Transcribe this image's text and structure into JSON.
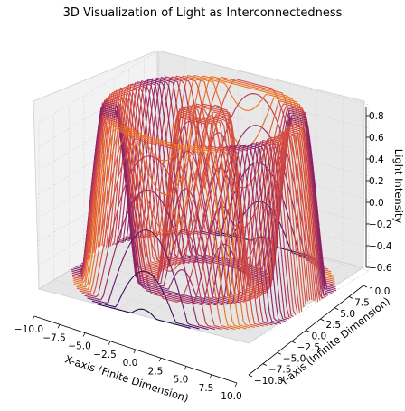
{
  "chart_data": {
    "type": "surface-3d-contour",
    "title": "3D Visualization of Light as Interconnectedness",
    "xlabel": "X-axis (Finite Dimension)",
    "ylabel": "Y-axis (Infinite Dimension)",
    "zlabel": "Light Intensity",
    "xlim": [
      -10,
      10
    ],
    "ylim": [
      -10,
      10
    ],
    "zlim": [
      -0.6,
      0.8
    ],
    "x_ticks": [
      "−10.0",
      "−7.5",
      "−5.0",
      "−2.5",
      "0.0",
      "2.5",
      "5.0",
      "7.5",
      "10.0"
    ],
    "y_ticks": [
      "−10.0",
      "−7.5",
      "−5.0",
      "−2.5",
      "0.0",
      "2.5",
      "5.0",
      "7.5",
      "10.0"
    ],
    "z_ticks": [
      "−0.6",
      "−0.4",
      "−0.2",
      "0.0",
      "0.2",
      "0.4",
      "0.6",
      "0.8"
    ],
    "function": "sin(sqrt(x^2 + y^2))",
    "colormap": "inferno",
    "grid": true,
    "legend": "none"
  }
}
